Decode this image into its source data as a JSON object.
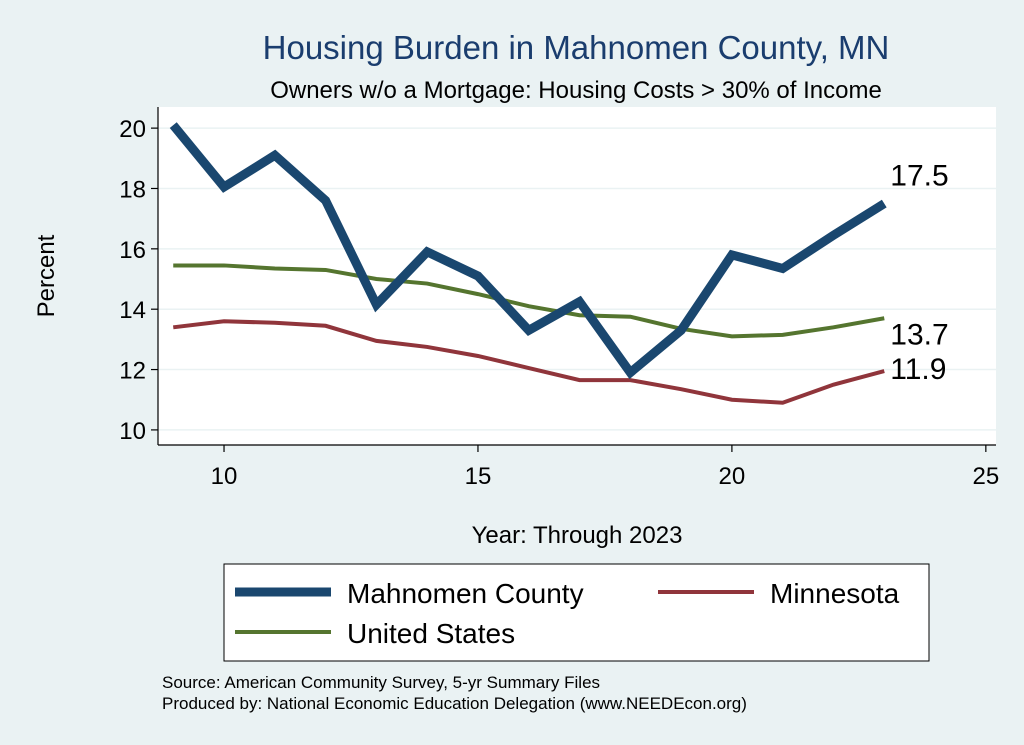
{
  "chart_data": {
    "type": "line",
    "title": "Housing Burden in Mahnomen County, MN",
    "subtitle": "Owners w/o a Mortgage: Housing Costs > 30% of Income",
    "xlabel": "Year: Through 2023",
    "ylabel": "Percent",
    "xlim": [
      8.7,
      25.2
    ],
    "ylim": [
      9.5,
      20.7
    ],
    "xticks": [
      10,
      15,
      20,
      25
    ],
    "yticks": [
      10,
      12,
      14,
      16,
      18,
      20
    ],
    "grid": true,
    "legend_placement": "bottom",
    "x": [
      9,
      10,
      11,
      12,
      13,
      14,
      15,
      16,
      17,
      18,
      19,
      20,
      21,
      22,
      23
    ],
    "series": [
      {
        "name": "Mahnomen County",
        "color": "#1a476f",
        "values": [
          20.1,
          18.05,
          19.1,
          17.6,
          14.15,
          15.9,
          15.1,
          13.3,
          14.25,
          11.9,
          13.3,
          15.8,
          15.35,
          16.45,
          17.5
        ],
        "end_label": "17.5"
      },
      {
        "name": "Minnesota",
        "color": "#90353b",
        "values": [
          13.4,
          13.6,
          13.55,
          13.45,
          12.95,
          12.75,
          12.45,
          12.05,
          11.65,
          11.65,
          11.35,
          11.0,
          10.9,
          11.5,
          11.95
        ],
        "end_label": "11.9"
      },
      {
        "name": "United States",
        "color": "#55752f",
        "values": [
          15.45,
          15.45,
          15.35,
          15.3,
          15.0,
          14.85,
          14.5,
          14.1,
          13.8,
          13.75,
          13.35,
          13.1,
          13.15,
          13.4,
          13.7
        ],
        "end_label": "13.7"
      }
    ],
    "source_note": "Source: American Community Survey, 5-yr Summary Files",
    "producer_note": "Produced by: National Economic Education Delegation (www.NEEDEcon.org)"
  }
}
